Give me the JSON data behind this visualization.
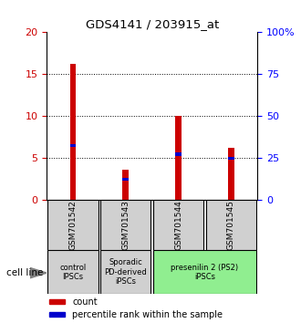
{
  "title": "GDS4141 / 203915_at",
  "samples": [
    "GSM701542",
    "GSM701543",
    "GSM701544",
    "GSM701545"
  ],
  "count_values": [
    16.2,
    3.6,
    10.0,
    6.2
  ],
  "percentile_values": [
    6.5,
    2.5,
    5.5,
    5.0
  ],
  "bar_width": 0.12,
  "blue_bar_width": 0.12,
  "blue_bar_height": 0.4,
  "red_color": "#cc0000",
  "blue_color": "#0000cc",
  "left_ylim": [
    0,
    20
  ],
  "right_ylim": [
    0,
    100
  ],
  "left_yticks": [
    0,
    5,
    10,
    15,
    20
  ],
  "right_yticks": [
    0,
    25,
    50,
    75,
    100
  ],
  "right_yticklabels": [
    "0",
    "25",
    "50",
    "75",
    "100%"
  ],
  "grid_yticks": [
    5,
    10,
    15
  ],
  "groups": [
    {
      "label": "control\nIPSCs",
      "indices": [
        0
      ],
      "color": "#d0d0d0"
    },
    {
      "label": "Sporadic\nPD-derived\niPSCs",
      "indices": [
        1
      ],
      "color": "#d0d0d0"
    },
    {
      "label": "presenilin 2 (PS2)\niPSCs",
      "indices": [
        2,
        3
      ],
      "color": "#90ee90"
    }
  ],
  "cell_line_label": "cell line",
  "legend_items": [
    {
      "color": "#cc0000",
      "label": "count"
    },
    {
      "color": "#0000cc",
      "label": "percentile rank within the sample"
    }
  ]
}
